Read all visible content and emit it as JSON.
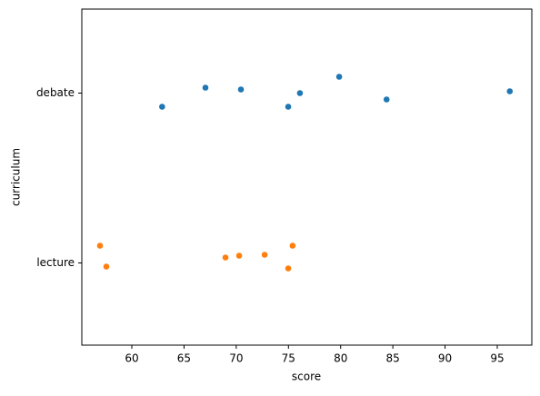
{
  "chart_data": {
    "type": "strip",
    "xlabel": "score",
    "ylabel": "curriculum",
    "categories": [
      "debate",
      "lecture"
    ],
    "colors": [
      "#1f77b4",
      "#ff7f0e"
    ],
    "values": [
      [
        62.9,
        67.05,
        70.45,
        74.98,
        76.1,
        79.86,
        84.4,
        96.2
      ],
      [
        56.95,
        57.56,
        68.97,
        70.28,
        72.72,
        74.98,
        75.4
      ]
    ],
    "xlim": [
      55.21,
      98.31
    ],
    "xticks": [
      60,
      65,
      70,
      75,
      80,
      85,
      90,
      95
    ]
  }
}
